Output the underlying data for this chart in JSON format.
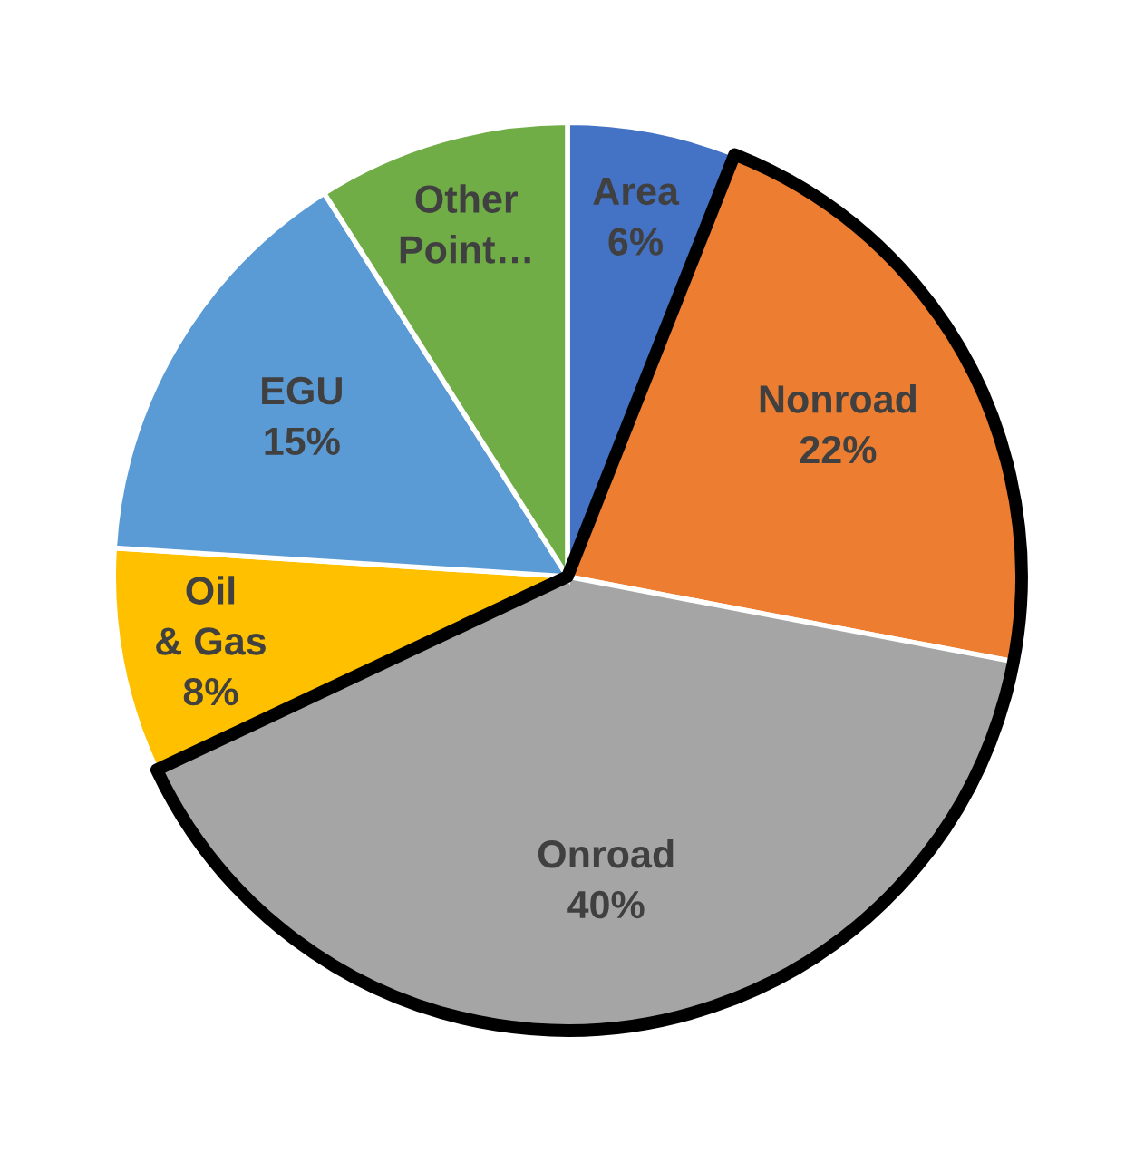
{
  "chart_data": {
    "type": "pie",
    "categories": [
      "Area",
      "Nonroad",
      "Onroad",
      "Oil & Gas",
      "EGU",
      "Other Point…"
    ],
    "values": [
      6,
      22,
      40,
      8,
      15,
      9
    ],
    "colors": [
      "#4472c4",
      "#ed7d31",
      "#a5a5a5",
      "#ffc000",
      "#5b9bd5",
      "#70ad47"
    ],
    "value_labels": [
      "6%",
      "22%",
      "40%",
      "8%",
      "15%",
      null
    ],
    "legend": false
  }
}
